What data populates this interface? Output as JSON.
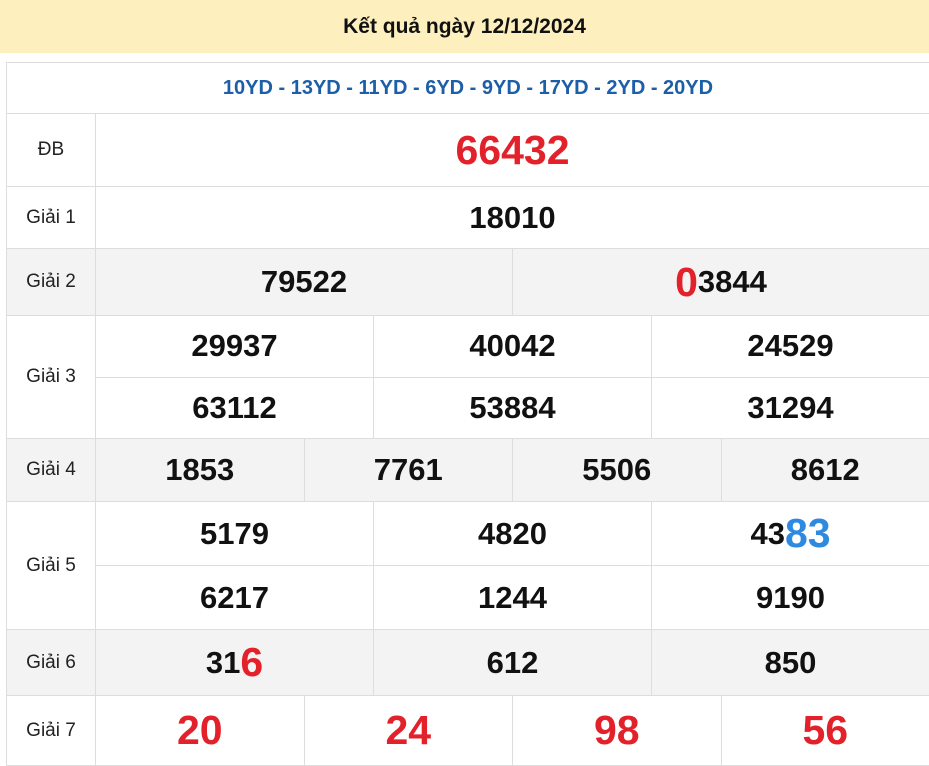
{
  "header": {
    "title": "Kết quả ngày 12/12/2024"
  },
  "codes": "10YD - 13YD - 11YD - 6YD - 9YD - 17YD - 2YD - 20YD",
  "colors": {
    "header_bg": "#fdf0be",
    "code_text": "#1d5ea8",
    "red": "#e3212b",
    "blue": "#2e8ae0"
  },
  "prizes": [
    {
      "label": "ĐB",
      "rows": [
        [
          [
            {
              "t": "66432"
            }
          ]
        ]
      ]
    },
    {
      "label": "Giải 1",
      "rows": [
        [
          [
            {
              "t": "18010"
            }
          ]
        ]
      ]
    },
    {
      "label": "Giải 2",
      "rows": [
        [
          [
            {
              "t": "79522"
            }
          ],
          [
            {
              "t": "0",
              "hl": "red"
            },
            {
              "t": "3844"
            }
          ]
        ]
      ]
    },
    {
      "label": "Giải 3",
      "rows": [
        [
          [
            {
              "t": "29937"
            }
          ],
          [
            {
              "t": "40042"
            }
          ],
          [
            {
              "t": "24529"
            }
          ]
        ],
        [
          [
            {
              "t": "63112"
            }
          ],
          [
            {
              "t": "53884"
            }
          ],
          [
            {
              "t": "31294"
            }
          ]
        ]
      ]
    },
    {
      "label": "Giải 4",
      "rows": [
        [
          [
            {
              "t": "1853"
            }
          ],
          [
            {
              "t": "7761"
            }
          ],
          [
            {
              "t": "5506"
            }
          ],
          [
            {
              "t": "8612"
            }
          ]
        ]
      ]
    },
    {
      "label": "Giải 5",
      "rows": [
        [
          [
            {
              "t": "5179"
            }
          ],
          [
            {
              "t": "4820"
            }
          ],
          [
            {
              "t": "43"
            },
            {
              "t": "83",
              "hl": "blue"
            }
          ]
        ],
        [
          [
            {
              "t": "6217"
            }
          ],
          [
            {
              "t": "1244"
            }
          ],
          [
            {
              "t": "9190"
            }
          ]
        ]
      ]
    },
    {
      "label": "Giải 6",
      "rows": [
        [
          [
            {
              "t": "31"
            },
            {
              "t": "6",
              "hl": "red"
            }
          ],
          [
            {
              "t": "612"
            }
          ],
          [
            {
              "t": "850"
            }
          ]
        ]
      ]
    },
    {
      "label": "Giải 7",
      "rows": [
        [
          [
            {
              "t": "20"
            }
          ],
          [
            {
              "t": "24"
            }
          ],
          [
            {
              "t": "98"
            }
          ],
          [
            {
              "t": "56"
            }
          ]
        ]
      ]
    }
  ]
}
